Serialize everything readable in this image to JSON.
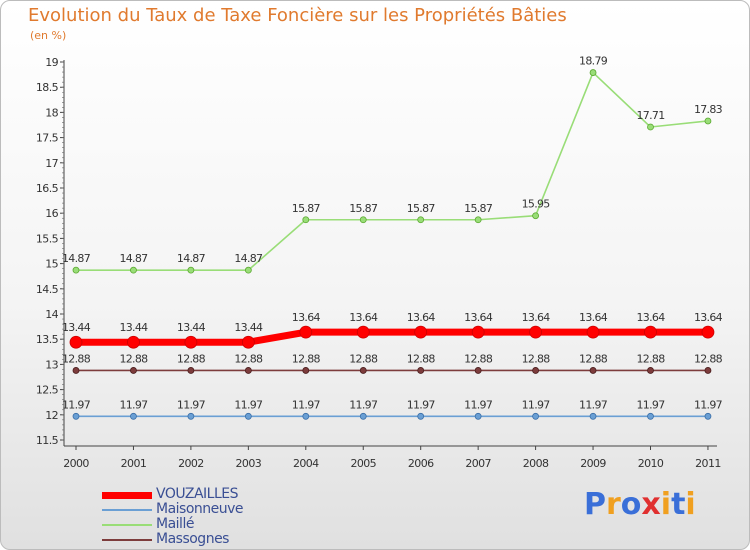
{
  "chart_data": {
    "type": "line",
    "title": "Evolution du Taux de Taxe Foncière sur les Propriétés Bâties",
    "ylabel": "(en %)",
    "xlabel": "",
    "categories": [
      "2000",
      "2001",
      "2002",
      "2003",
      "2004",
      "2005",
      "2006",
      "2007",
      "2008",
      "2009",
      "2010",
      "2011"
    ],
    "ylim": [
      11.5,
      19
    ],
    "yticks": [
      "11.5",
      "12",
      "12.5",
      "13",
      "13.5",
      "14",
      "14.5",
      "15",
      "15.5",
      "16",
      "16.5",
      "17",
      "17.5",
      "18",
      "18.5",
      "19"
    ],
    "series": [
      {
        "name": "VOUZAILLES",
        "color": "#ff0000",
        "values": [
          13.44,
          13.44,
          13.44,
          13.44,
          13.64,
          13.64,
          13.64,
          13.64,
          13.64,
          13.64,
          13.64,
          13.64
        ],
        "labels": [
          "13.44",
          "13.44",
          "13.44",
          "13.44",
          "13.64",
          "13.64",
          "13.64",
          "13.64",
          "13.64",
          "13.64",
          "13.64",
          "13.64"
        ]
      },
      {
        "name": "Maisonneuve",
        "color": "#6a9fd4",
        "values": [
          11.97,
          11.97,
          11.97,
          11.97,
          11.97,
          11.97,
          11.97,
          11.97,
          11.97,
          11.97,
          11.97,
          11.97
        ],
        "labels": [
          "11.97",
          "11.97",
          "11.97",
          "11.97",
          "11.97",
          "11.97",
          "11.97",
          "11.97",
          "11.97",
          "11.97",
          "11.97",
          "11.97"
        ]
      },
      {
        "name": "Maillé",
        "color": "#99dd77",
        "values": [
          14.87,
          14.87,
          14.87,
          14.87,
          15.87,
          15.87,
          15.87,
          15.87,
          15.95,
          18.79,
          17.71,
          17.83
        ],
        "labels": [
          "14.87",
          "14.87",
          "14.87",
          "14.87",
          "15.87",
          "15.87",
          "15.87",
          "15.87",
          "15.95",
          "18.79",
          "17.71",
          "17.83"
        ]
      },
      {
        "name": "Massognes",
        "color": "#7d3c3c",
        "values": [
          12.88,
          12.88,
          12.88,
          12.88,
          12.88,
          12.88,
          12.88,
          12.88,
          12.88,
          12.88,
          12.88,
          12.88
        ],
        "labels": [
          "12.88",
          "12.88",
          "12.88",
          "12.88",
          "12.88",
          "12.88",
          "12.88",
          "12.88",
          "12.88",
          "12.88",
          "12.88",
          "12.88"
        ]
      }
    ]
  },
  "logo": {
    "text": "Proxiti",
    "letters": [
      "P",
      "r",
      "o",
      "x",
      "i",
      "t",
      "i"
    ],
    "colors": [
      "#3a6fd8",
      "#f0a020",
      "#3a6fd8",
      "#e03030",
      "#f0a020",
      "#3a6fd8",
      "#f0a020"
    ]
  }
}
